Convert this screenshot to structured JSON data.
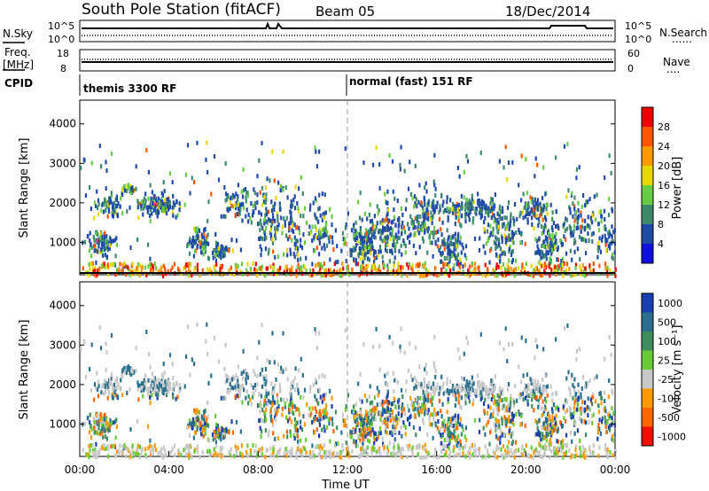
{
  "header": {
    "station": "South Pole Station (fitACF)",
    "beam": "Beam 05",
    "date": "18/Dec/2014"
  },
  "strip_labels": {
    "nsky": "N.Sky",
    "freq_line1": "Freq.",
    "freq_line2": "[MHz]",
    "cpid": "CPID",
    "nsearch": "N.Search",
    "nave": "Nave",
    "dots": "......",
    "dots_short": "...."
  },
  "strip_ticks": {
    "noise_top": "10^5",
    "noise_bottom": "10^0",
    "freq_top": "18",
    "freq_bottom": "8",
    "nave_top": "60",
    "nave_bottom": "0"
  },
  "cpid": {
    "segments": [
      {
        "label": "themis 3300 RF",
        "start_hour": 0
      },
      {
        "label": "normal (fast) 151 RF",
        "start_hour": 12
      }
    ]
  },
  "chart_data": [
    {
      "type": "heatmap",
      "name": "power",
      "ylabel": "Slant Range [km]",
      "ylim": [
        180,
        4600
      ],
      "yticks": [
        1000,
        2000,
        3000,
        4000
      ],
      "colorbar": {
        "label": "Power [dB]",
        "levels": [
          {
            "label": "28",
            "color": "#ee0000"
          },
          {
            "label": "24",
            "color": "#ff5500"
          },
          {
            "label": "20",
            "color": "#ff9900"
          },
          {
            "label": "16",
            "color": "#e8d800"
          },
          {
            "label": "12",
            "color": "#66cc44"
          },
          {
            "label": "8",
            "color": "#3d8a6a"
          },
          {
            "label": "4",
            "color": "#1f4aa8"
          },
          {
            "label": "",
            "color": "#1010dd"
          }
        ]
      }
    },
    {
      "type": "heatmap",
      "name": "velocity",
      "ylabel": "Slant Range [km]",
      "xlabel": "Time UT",
      "ylim": [
        180,
        4600
      ],
      "yticks": [
        1000,
        2000,
        3000,
        4000
      ],
      "xticks": [
        "00:00",
        "04:00",
        "08:00",
        "12:00",
        "16:00",
        "20:00",
        "00:00"
      ],
      "colorbar": {
        "label": "Velocity [m s⁻¹]",
        "levels": [
          {
            "label": "1000",
            "color": "#1a3fb0"
          },
          {
            "label": "500",
            "color": "#2a6f90"
          },
          {
            "label": "100",
            "color": "#3e8e5e"
          },
          {
            "label": "25",
            "color": "#66cc33"
          },
          {
            "label": "-25",
            "color": "#c8c8c8"
          },
          {
            "label": "-100",
            "color": "#ff9900"
          },
          {
            "label": "-500",
            "color": "#ff6600"
          },
          {
            "label": "-1000",
            "color": "#ee1100"
          }
        ]
      }
    }
  ]
}
